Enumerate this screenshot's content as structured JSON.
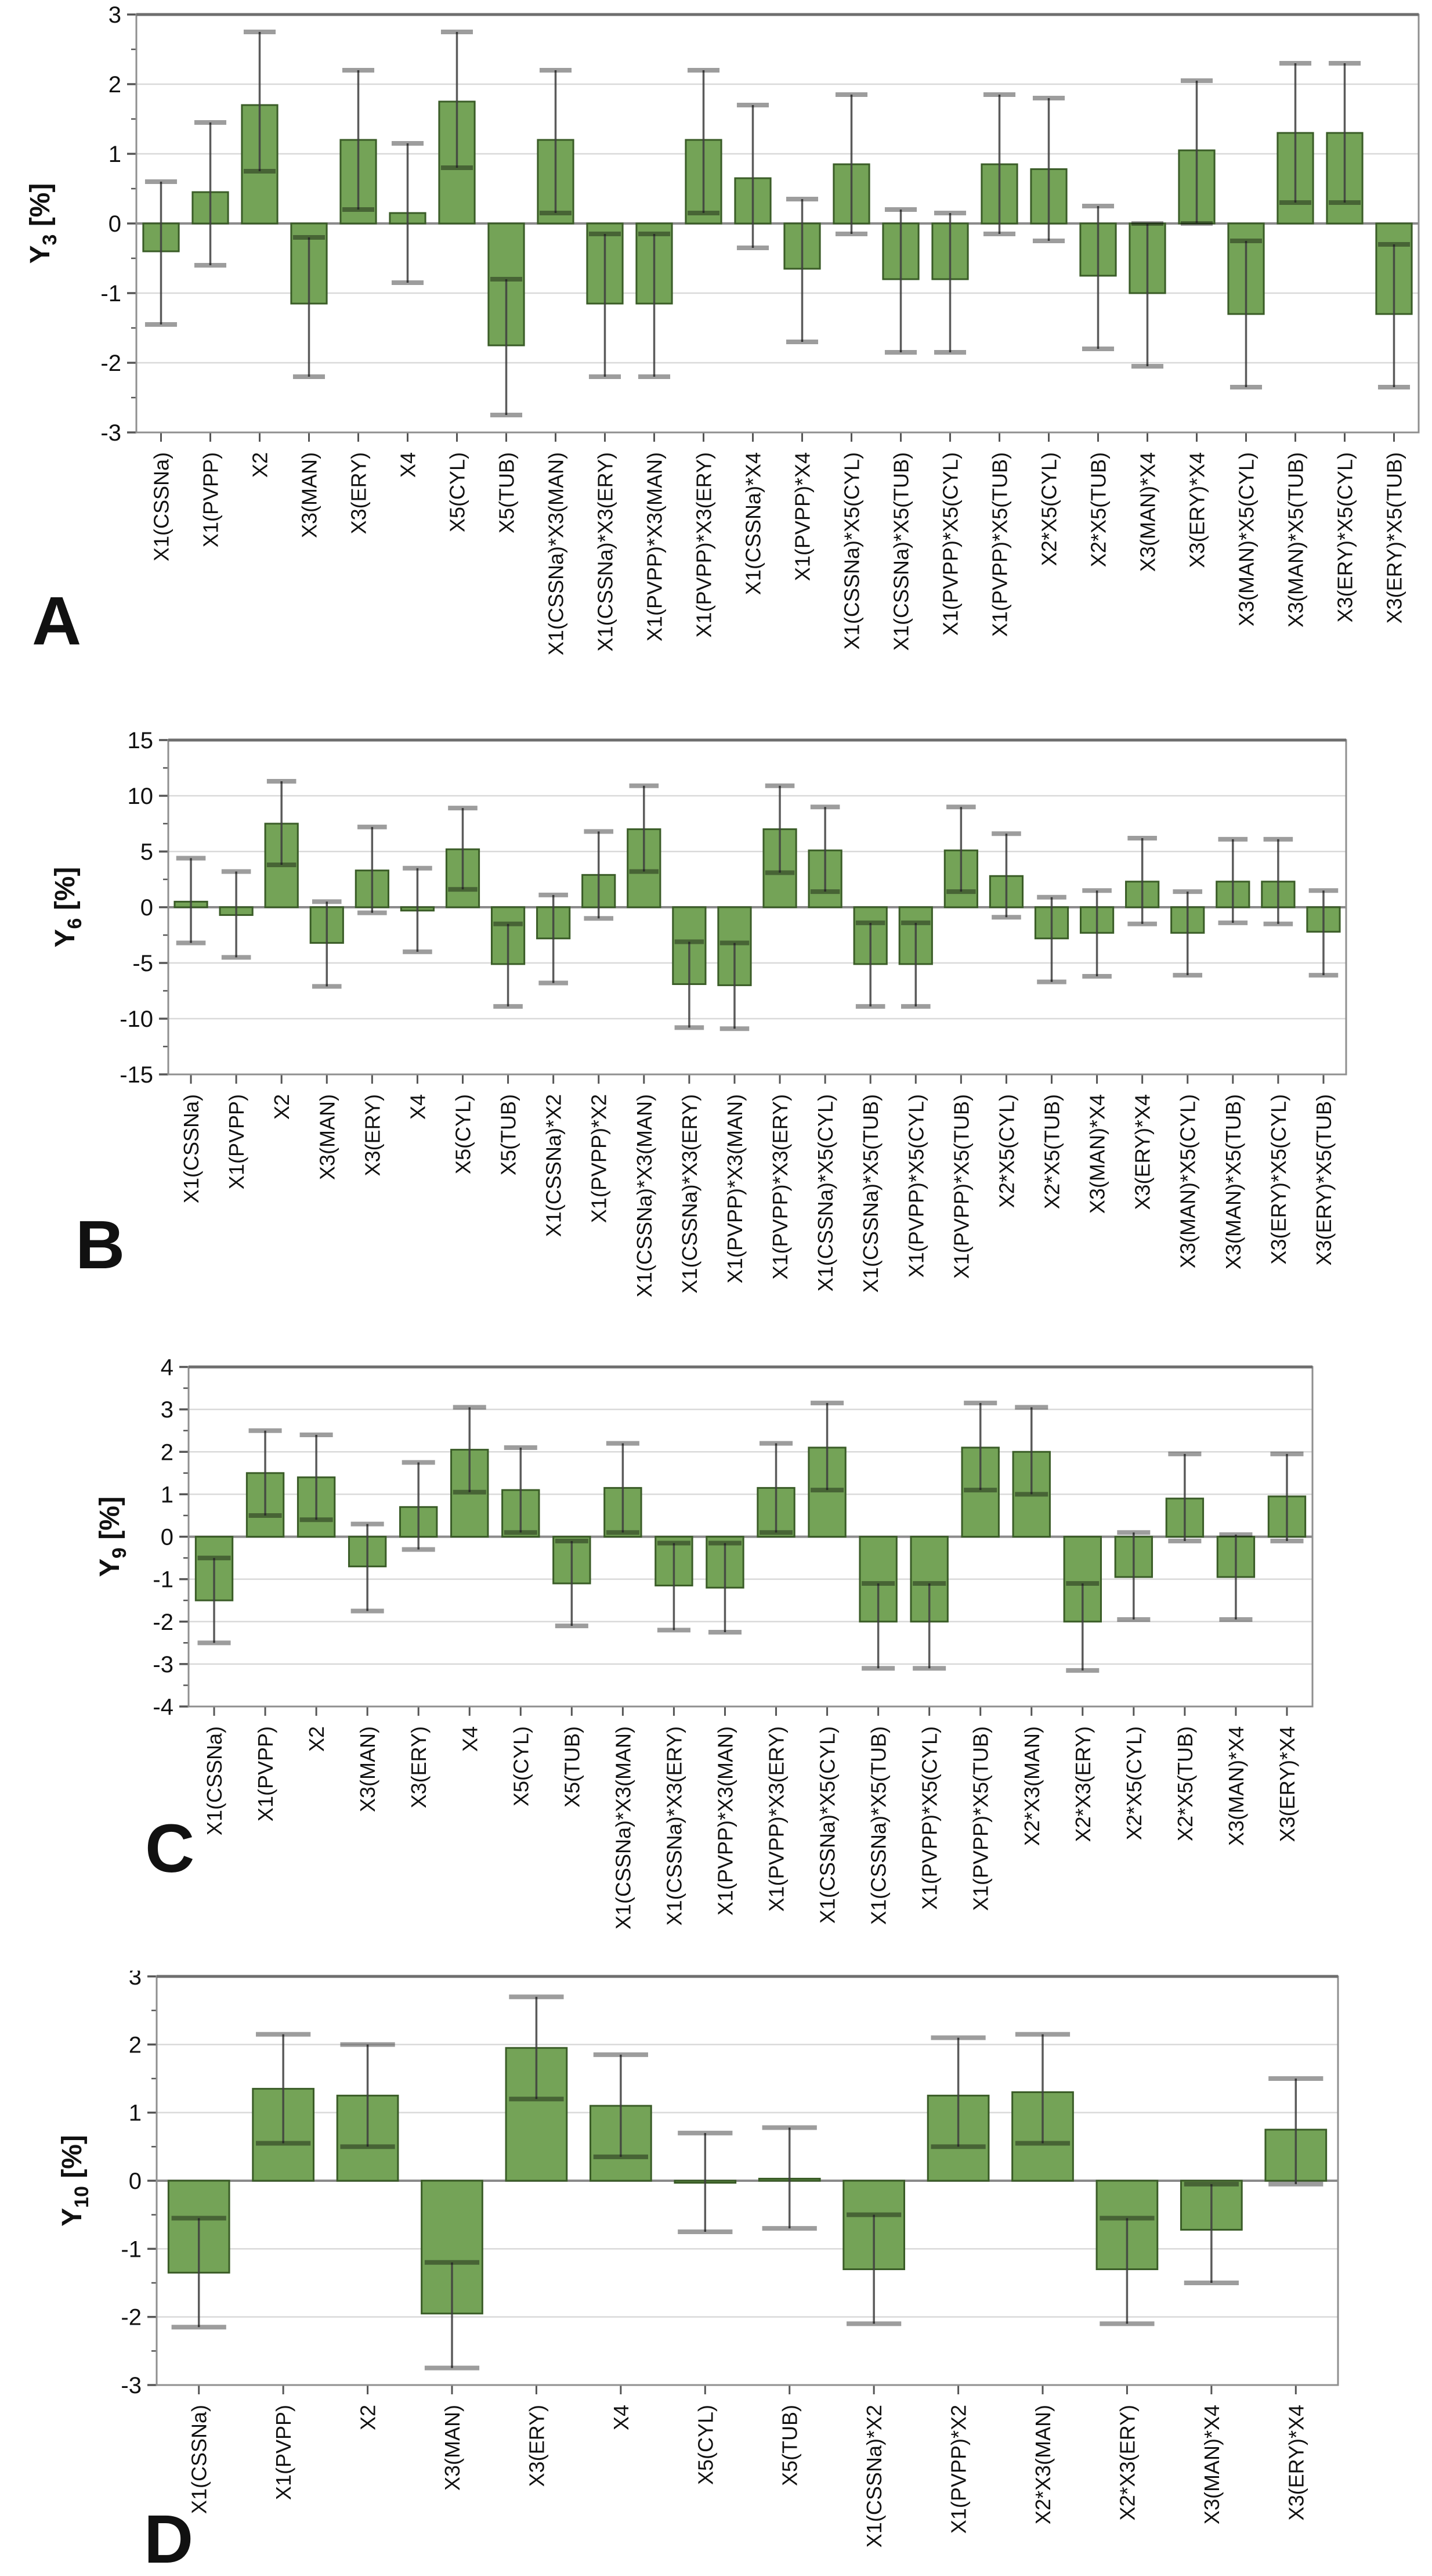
{
  "figure": {
    "background": "#ffffff",
    "description_visible_text_only": true
  },
  "colors": {
    "bar_fill": "#74a357",
    "bar_stroke": "#3a5c27",
    "error_line": "#3f3f3f",
    "error_cap": "#000000",
    "grid": "#d9d9d9",
    "zero_line": "#8a8a8a",
    "border": "#8f8f8f",
    "top_border": "#6e6e6e",
    "axis_tick": "#555555",
    "text": "#111111"
  },
  "chart_data": [
    {
      "id": "A",
      "panel_label": "A",
      "type": "bar",
      "ylabel_base": "Y",
      "ylabel_sub": "3",
      "ylabel_unit": "[%]",
      "ylim": [
        -3,
        3
      ],
      "ytick_step": 1,
      "yminor_step": 0.5,
      "grid": true,
      "legend": "none",
      "categories": [
        "X1(CSSNa)",
        "X1(PVPP)",
        "X2",
        "X3(MAN)",
        "X3(ERY)",
        "X4",
        "X5(CYL)",
        "X5(TUB)",
        "X1(CSSNa)*X3(MAN)",
        "X1(CSSNa)*X3(ERY)",
        "X1(PVPP)*X3(MAN)",
        "X1(PVPP)*X3(ERY)",
        "X1(CSSNa)*X4",
        "X1(PVPP)*X4",
        "X1(CSSNa)*X5(CYL)",
        "X1(CSSNa)*X5(TUB)",
        "X1(PVPP)*X5(CYL)",
        "X1(PVPP)*X5(TUB)",
        "X2*X5(CYL)",
        "X2*X5(TUB)",
        "X3(MAN)*X4",
        "X3(ERY)*X4",
        "X3(MAN)*X5(CYL)",
        "X3(MAN)*X5(TUB)",
        "X3(ERY)*X5(CYL)",
        "X3(ERY)*X5(TUB)"
      ],
      "values": [
        -0.4,
        0.45,
        1.7,
        -1.15,
        1.2,
        0.15,
        1.75,
        -1.75,
        1.2,
        -1.15,
        -1.15,
        1.2,
        0.65,
        -0.65,
        0.85,
        -0.8,
        -0.8,
        0.85,
        0.78,
        -0.75,
        -1.0,
        1.05,
        -1.3,
        1.3,
        1.3,
        -1.3
      ],
      "error_low": [
        -1.45,
        -0.6,
        0.75,
        -2.2,
        0.2,
        -0.85,
        0.8,
        -2.75,
        0.15,
        -2.2,
        -2.2,
        0.15,
        -0.35,
        -1.7,
        -0.15,
        -1.85,
        -1.85,
        -0.15,
        -0.25,
        -1.8,
        -2.05,
        0.0,
        -2.35,
        0.3,
        0.3,
        -2.35
      ],
      "error_high": [
        0.6,
        1.45,
        2.75,
        -0.2,
        2.2,
        1.15,
        2.75,
        -0.8,
        2.2,
        -0.15,
        -0.15,
        2.2,
        1.7,
        0.35,
        1.85,
        0.2,
        0.15,
        1.85,
        1.8,
        0.25,
        0.0,
        2.05,
        -0.25,
        2.3,
        2.3,
        -0.3
      ]
    },
    {
      "id": "B",
      "panel_label": "B",
      "type": "bar",
      "ylabel_base": "Y",
      "ylabel_sub": "6",
      "ylabel_unit": "[%]",
      "ylim": [
        -15,
        15
      ],
      "ytick_step": 5,
      "yminor_step": 2.5,
      "grid": true,
      "legend": "none",
      "categories": [
        "X1(CSSNa)",
        "X1(PVPP)",
        "X2",
        "X3(MAN)",
        "X3(ERY)",
        "X4",
        "X5(CYL)",
        "X5(TUB)",
        "X1(CSSNa)*X2",
        "X1(PVPP)*X2",
        "X1(CSSNa)*X3(MAN)",
        "X1(CSSNa)*X3(ERY)",
        "X1(PVPP)*X3(MAN)",
        "X1(PVPP)*X3(ERY)",
        "X1(CSSNa)*X5(CYL)",
        "X1(CSSNa)*X5(TUB)",
        "X1(PVPP)*X5(CYL)",
        "X1(PVPP)*X5(TUB)",
        "X2*X5(CYL)",
        "X2*X5(TUB)",
        "X3(MAN)*X4",
        "X3(ERY)*X4",
        "X3(MAN)*X5(CYL)",
        "X3(MAN)*X5(TUB)",
        "X3(ERY)*X5(CYL)",
        "X3(ERY)*X5(TUB)"
      ],
      "values": [
        0.5,
        -0.7,
        7.5,
        -3.2,
        3.3,
        -0.3,
        5.2,
        -5.1,
        -2.8,
        2.9,
        7.0,
        -6.9,
        -7.0,
        7.0,
        5.1,
        -5.1,
        -5.1,
        5.1,
        2.8,
        -2.8,
        -2.3,
        2.3,
        -2.3,
        2.3,
        2.3,
        -2.2
      ],
      "error_low": [
        -3.2,
        -4.5,
        3.8,
        -7.1,
        -0.5,
        -4.0,
        1.6,
        -8.9,
        -6.8,
        -1.0,
        3.2,
        -10.8,
        -10.9,
        3.1,
        1.4,
        -8.9,
        -8.9,
        1.4,
        -0.9,
        -6.7,
        -6.2,
        -1.5,
        -6.1,
        -1.4,
        -1.5,
        -6.1
      ],
      "error_high": [
        4.4,
        3.2,
        11.3,
        0.5,
        7.2,
        3.5,
        8.9,
        -1.5,
        1.1,
        6.8,
        10.9,
        -3.1,
        -3.2,
        10.9,
        9.0,
        -1.4,
        -1.4,
        9.0,
        6.6,
        0.9,
        1.5,
        6.2,
        1.4,
        6.1,
        6.1,
        1.5
      ]
    },
    {
      "id": "C",
      "panel_label": "C",
      "type": "bar",
      "ylabel_base": "Y",
      "ylabel_sub": "9",
      "ylabel_unit": "[%]",
      "ylim": [
        -4,
        4
      ],
      "ytick_step": 1,
      "yminor_step": 0.5,
      "grid": true,
      "legend": "none",
      "categories": [
        "X1(CSSNa)",
        "X1(PVPP)",
        "X2",
        "X3(MAN)",
        "X3(ERY)",
        "X4",
        "X5(CYL)",
        "X5(TUB)",
        "X1(CSSNa)*X3(MAN)",
        "X1(CSSNa)*X3(ERY)",
        "X1(PVPP)*X3(MAN)",
        "X1(PVPP)*X3(ERY)",
        "X1(CSSNa)*X5(CYL)",
        "X1(CSSNa)*X5(TUB)",
        "X1(PVPP)*X5(CYL)",
        "X1(PVPP)*X5(TUB)",
        "X2*X3(MAN)",
        "X2*X3(ERY)",
        "X2*X5(CYL)",
        "X2*X5(TUB)",
        "X3(MAN)*X4",
        "X3(ERY)*X4"
      ],
      "values": [
        -1.5,
        1.5,
        1.4,
        -0.7,
        0.7,
        2.05,
        1.1,
        -1.1,
        1.15,
        -1.15,
        -1.2,
        1.15,
        2.1,
        -2.0,
        -2.0,
        2.1,
        2.0,
        -2.0,
        -0.95,
        0.9,
        -0.95,
        0.95
      ],
      "error_low": [
        -2.5,
        0.5,
        0.4,
        -1.75,
        -0.3,
        1.05,
        0.1,
        -2.1,
        0.1,
        -2.2,
        -2.25,
        0.1,
        1.1,
        -3.1,
        -3.1,
        1.1,
        1.0,
        -3.15,
        -1.95,
        -0.1,
        -1.95,
        -0.1
      ],
      "error_high": [
        -0.5,
        2.5,
        2.4,
        0.3,
        1.75,
        3.05,
        2.1,
        -0.1,
        2.2,
        -0.15,
        -0.15,
        2.2,
        3.15,
        -1.1,
        -1.1,
        3.15,
        3.05,
        -1.1,
        0.1,
        1.95,
        0.05,
        1.95
      ]
    },
    {
      "id": "D",
      "panel_label": "D",
      "type": "bar",
      "ylabel_base": "Y",
      "ylabel_sub": "10",
      "ylabel_unit": "[%]",
      "ylim": [
        -3,
        3
      ],
      "ytick_step": 1,
      "yminor_step": 0.5,
      "grid": true,
      "legend": "none",
      "categories": [
        "X1(CSSNa)",
        "X1(PVPP)",
        "X2",
        "X3(MAN)",
        "X3(ERY)",
        "X4",
        "X5(CYL)",
        "X5(TUB)",
        "X1(CSSNa)*X2",
        "X1(PVPP)*X2",
        "X2*X3(MAN)",
        "X2*X3(ERY)",
        "X3(MAN)*X4",
        "X3(ERY)*X4"
      ],
      "values": [
        -1.35,
        1.35,
        1.25,
        -1.95,
        1.95,
        1.1,
        -0.03,
        0.03,
        -1.3,
        1.25,
        1.3,
        -1.3,
        -0.72,
        0.75
      ],
      "error_low": [
        -2.15,
        0.55,
        0.5,
        -2.75,
        1.2,
        0.35,
        -0.75,
        -0.7,
        -2.1,
        0.5,
        0.55,
        -2.1,
        -1.5,
        -0.05
      ],
      "error_high": [
        -0.55,
        2.15,
        2.0,
        -1.2,
        2.7,
        1.85,
        0.7,
        0.78,
        -0.5,
        2.1,
        2.15,
        -0.55,
        -0.05,
        1.5
      ]
    }
  ]
}
